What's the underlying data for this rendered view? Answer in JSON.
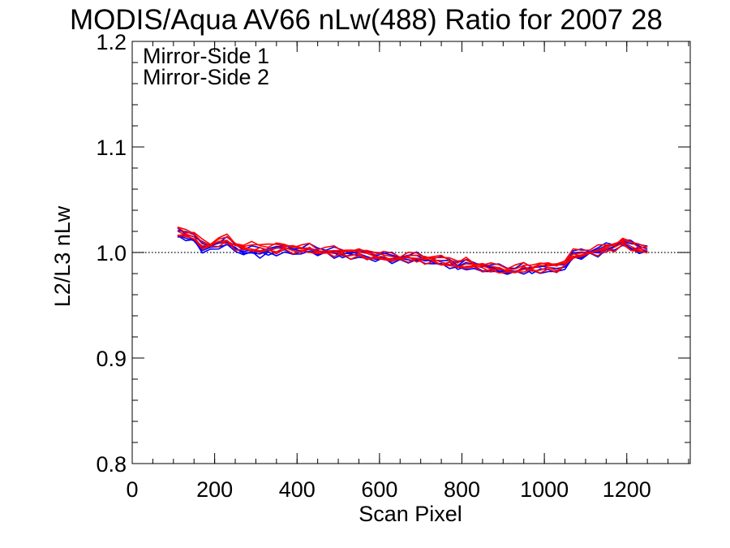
{
  "chart_data": {
    "type": "line",
    "title": "MODIS/Aqua AV66 nLw(488) Ratio for 2007 28",
    "xlabel": "Scan Pixel",
    "ylabel": "L2/L3 nLw",
    "xlim": [
      0,
      1354
    ],
    "ylim": [
      0.8,
      1.2
    ],
    "xticks": [
      0,
      200,
      400,
      600,
      800,
      1000,
      1200
    ],
    "xtick_labels": [
      "0",
      "200",
      "400",
      "600",
      "800",
      "1000",
      "1200"
    ],
    "yticks": [
      0.8,
      0.9,
      1.0,
      1.1,
      1.2
    ],
    "ytick_labels": [
      "0.8",
      "0.9",
      "1.0",
      "1.1",
      "1.2"
    ],
    "reference_line": 1.0,
    "grid": false,
    "legend_position": "top-left",
    "colors": {
      "mirror_side_1": "#0000ff",
      "mirror_side_2": "#ff0000",
      "reference": "#000000"
    },
    "x": [
      110,
      130,
      150,
      170,
      190,
      210,
      230,
      250,
      270,
      290,
      310,
      330,
      350,
      370,
      390,
      410,
      430,
      450,
      470,
      490,
      510,
      530,
      550,
      570,
      590,
      610,
      630,
      650,
      670,
      690,
      710,
      730,
      750,
      770,
      790,
      810,
      830,
      850,
      870,
      890,
      910,
      930,
      950,
      970,
      990,
      1010,
      1030,
      1050,
      1070,
      1090,
      1110,
      1130,
      1150,
      1170,
      1190,
      1210,
      1230,
      1250
    ],
    "series": [
      {
        "name": "Mirror-Side 1",
        "color": "#0000ff",
        "values": [
          1.018,
          1.016,
          1.013,
          1.005,
          1.004,
          1.008,
          1.01,
          1.004,
          1.002,
          1.002,
          1.0,
          1.001,
          1.002,
          1.002,
          1.002,
          1.002,
          1.003,
          1.002,
          1.001,
          1.0,
          0.999,
          0.998,
          0.998,
          0.997,
          0.996,
          0.996,
          0.995,
          0.994,
          0.995,
          0.995,
          0.993,
          0.993,
          0.991,
          0.99,
          0.987,
          0.989,
          0.986,
          0.986,
          0.985,
          0.984,
          0.984,
          0.983,
          0.985,
          0.984,
          0.985,
          0.984,
          0.985,
          0.988,
          0.997,
          0.999,
          1.0,
          1.001,
          1.004,
          1.006,
          1.01,
          1.006,
          1.004,
          1.002
        ]
      },
      {
        "name": "Mirror-Side 2",
        "color": "#ff0000",
        "values": [
          1.02,
          1.018,
          1.015,
          1.008,
          1.007,
          1.011,
          1.012,
          1.007,
          1.005,
          1.005,
          1.004,
          1.004,
          1.004,
          1.004,
          1.004,
          1.003,
          1.004,
          1.002,
          1.002,
          1.001,
          1.0,
          0.999,
          0.998,
          0.998,
          0.997,
          0.996,
          0.996,
          0.995,
          0.996,
          0.995,
          0.994,
          0.993,
          0.992,
          0.991,
          0.988,
          0.99,
          0.987,
          0.987,
          0.985,
          0.985,
          0.984,
          0.984,
          0.986,
          0.985,
          0.986,
          0.985,
          0.986,
          0.99,
          0.998,
          1.0,
          1.001,
          1.002,
          1.004,
          1.006,
          1.009,
          1.006,
          1.004,
          1.002
        ]
      }
    ]
  }
}
